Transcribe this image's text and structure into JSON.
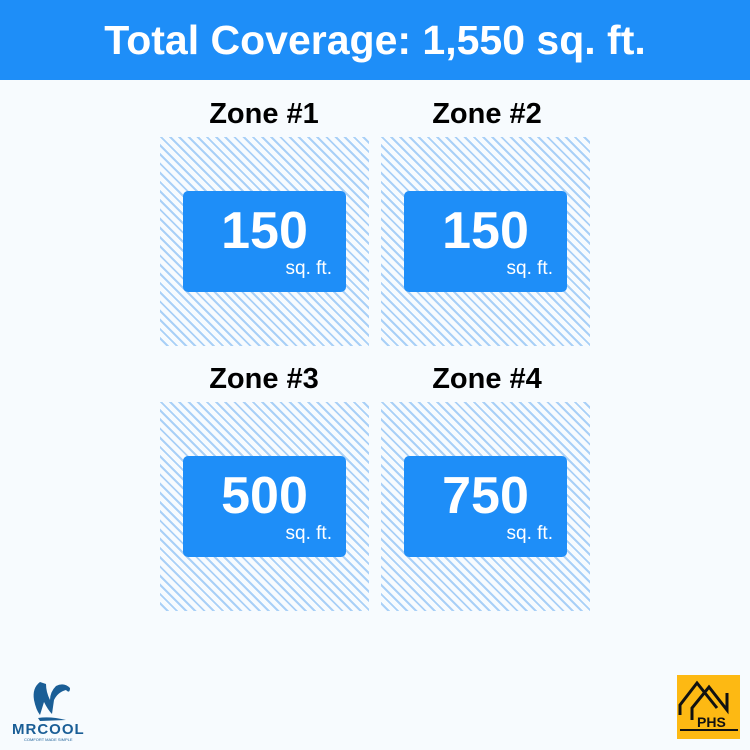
{
  "header": {
    "title": "Total Coverage: 1,550 sq. ft."
  },
  "zones": [
    {
      "label": "Zone #1",
      "value": "150",
      "unit": "sq. ft."
    },
    {
      "label": "Zone #2",
      "value": "150",
      "unit": "sq. ft."
    },
    {
      "label": "Zone #3",
      "value": "500",
      "unit": "sq. ft."
    },
    {
      "label": "Zone #4",
      "value": "750",
      "unit": "sq. ft."
    }
  ],
  "logos": {
    "left": "MRCOOL",
    "left_tagline": "COMFORT MADE SIMPLE",
    "right": "PHS"
  },
  "colors": {
    "accent": "#1e8ef8",
    "hatch": "#a9d0f7",
    "background": "#f7fbfe",
    "phs": "#fdb913",
    "mrcool": "#1a5e96"
  }
}
